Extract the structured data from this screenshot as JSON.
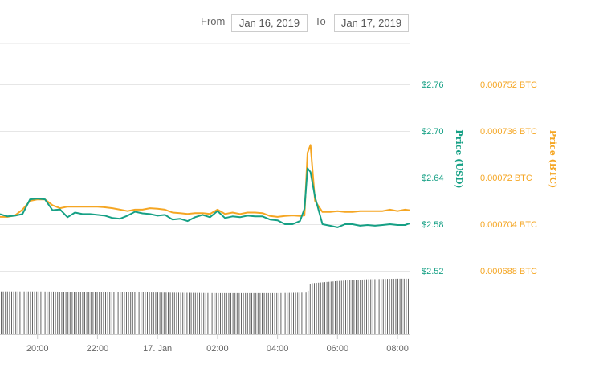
{
  "range": {
    "from_label": "From",
    "from_value": "Jan 16, 2019",
    "to_label": "To",
    "to_value": "Jan 17, 2019"
  },
  "colors": {
    "usd": "#16a085",
    "btc": "#f5a623",
    "grid": "#e6e6e6",
    "volume": "#666666"
  },
  "chart_data": {
    "type": "line",
    "title": "",
    "x_labels": [
      "20:00",
      "22:00",
      "17. Jan",
      "02:00",
      "04:00",
      "06:00",
      "08:00"
    ],
    "x_label_hours": [
      20,
      22,
      24,
      26,
      28,
      30,
      32
    ],
    "x_range_hours": [
      18.75,
      32.4
    ],
    "y_left": {
      "title": "Price (USD)",
      "ticks": [
        "$2.76",
        "$2.70",
        "$2.64",
        "$2.58",
        "$2.52"
      ],
      "tick_values": [
        2.76,
        2.7,
        2.64,
        2.58,
        2.52
      ],
      "range": [
        2.52,
        2.76
      ]
    },
    "y_right": {
      "title": "Price (BTC)",
      "ticks": [
        "0.000752 BTC",
        "0.000736 BTC",
        "0.00072 BTC",
        "0.000704 BTC",
        "0.000688 BTC"
      ],
      "tick_values": [
        0.000752,
        0.000736,
        0.00072,
        0.000704,
        0.000688
      ],
      "range": [
        0.000688,
        0.000752
      ]
    },
    "series": [
      {
        "name": "Price (USD)",
        "axis": "left",
        "hours": [
          18.75,
          19.0,
          19.25,
          19.5,
          19.75,
          20.0,
          20.25,
          20.5,
          20.75,
          21.0,
          21.25,
          21.5,
          21.75,
          22.0,
          22.25,
          22.5,
          22.75,
          23.0,
          23.25,
          23.5,
          23.75,
          24.0,
          24.25,
          24.5,
          24.75,
          25.0,
          25.25,
          25.5,
          25.75,
          26.0,
          26.25,
          26.5,
          26.75,
          27.0,
          27.25,
          27.5,
          27.75,
          28.0,
          28.25,
          28.5,
          28.75,
          28.9,
          29.0,
          29.1,
          29.25,
          29.5,
          29.75,
          30.0,
          30.25,
          30.5,
          30.75,
          31.0,
          31.25,
          31.5,
          31.75,
          32.0,
          32.25,
          32.4
        ],
        "values": [
          2.593,
          2.59,
          2.591,
          2.593,
          2.612,
          2.613,
          2.612,
          2.598,
          2.599,
          2.589,
          2.595,
          2.593,
          2.593,
          2.592,
          2.591,
          2.588,
          2.587,
          2.591,
          2.596,
          2.594,
          2.593,
          2.591,
          2.592,
          2.586,
          2.587,
          2.584,
          2.589,
          2.592,
          2.589,
          2.597,
          2.588,
          2.59,
          2.589,
          2.591,
          2.59,
          2.59,
          2.586,
          2.585,
          2.58,
          2.58,
          2.584,
          2.6,
          2.652,
          2.647,
          2.615,
          2.58,
          2.578,
          2.576,
          2.58,
          2.58,
          2.578,
          2.579,
          2.578,
          2.579,
          2.58,
          2.579,
          2.579,
          2.581
        ]
      },
      {
        "name": "Price (BTC)",
        "axis": "right",
        "hours": [
          18.75,
          19.0,
          19.25,
          19.5,
          19.75,
          20.0,
          20.25,
          20.5,
          20.75,
          21.0,
          21.25,
          21.5,
          21.75,
          22.0,
          22.25,
          22.5,
          22.75,
          23.0,
          23.25,
          23.5,
          23.75,
          24.0,
          24.25,
          24.5,
          24.75,
          25.0,
          25.25,
          25.5,
          25.75,
          26.0,
          26.25,
          26.5,
          26.75,
          27.0,
          27.25,
          27.5,
          27.75,
          28.0,
          28.25,
          28.5,
          28.75,
          28.9,
          29.0,
          29.1,
          29.25,
          29.5,
          29.75,
          30.0,
          30.25,
          30.5,
          30.75,
          31.0,
          31.25,
          31.5,
          31.75,
          32.0,
          32.25,
          32.4
        ],
        "values": [
          0.0007065,
          0.0007065,
          0.000707,
          0.000709,
          0.000712,
          0.0007125,
          0.0007125,
          0.0007105,
          0.0007095,
          0.00071,
          0.00071,
          0.00071,
          0.00071,
          0.00071,
          0.0007098,
          0.0007095,
          0.000709,
          0.0007085,
          0.000709,
          0.000709,
          0.0007095,
          0.0007093,
          0.000709,
          0.000708,
          0.0007078,
          0.0007075,
          0.0007078,
          0.0007078,
          0.0007075,
          0.000709,
          0.0007075,
          0.000708,
          0.0007075,
          0.000708,
          0.000708,
          0.0007078,
          0.0007068,
          0.0007065,
          0.0007068,
          0.000707,
          0.0007068,
          0.000707,
          0.0007285,
          0.0007312,
          0.000712,
          0.0007082,
          0.0007082,
          0.0007085,
          0.0007082,
          0.0007082,
          0.0007085,
          0.0007085,
          0.0007085,
          0.0007085,
          0.000709,
          0.0007085,
          0.000709,
          0.0007088
        ]
      }
    ],
    "volume": {
      "name": "Volume",
      "hours": [
        18.75,
        20.0,
        22.0,
        24.0,
        26.0,
        28.0,
        29.0,
        29.1,
        30.0,
        31.0,
        32.0,
        32.4
      ],
      "relative": [
        0.74,
        0.74,
        0.73,
        0.72,
        0.71,
        0.71,
        0.72,
        0.88,
        0.92,
        0.95,
        0.96,
        0.96
      ]
    },
    "grid": true,
    "legend": "none"
  }
}
